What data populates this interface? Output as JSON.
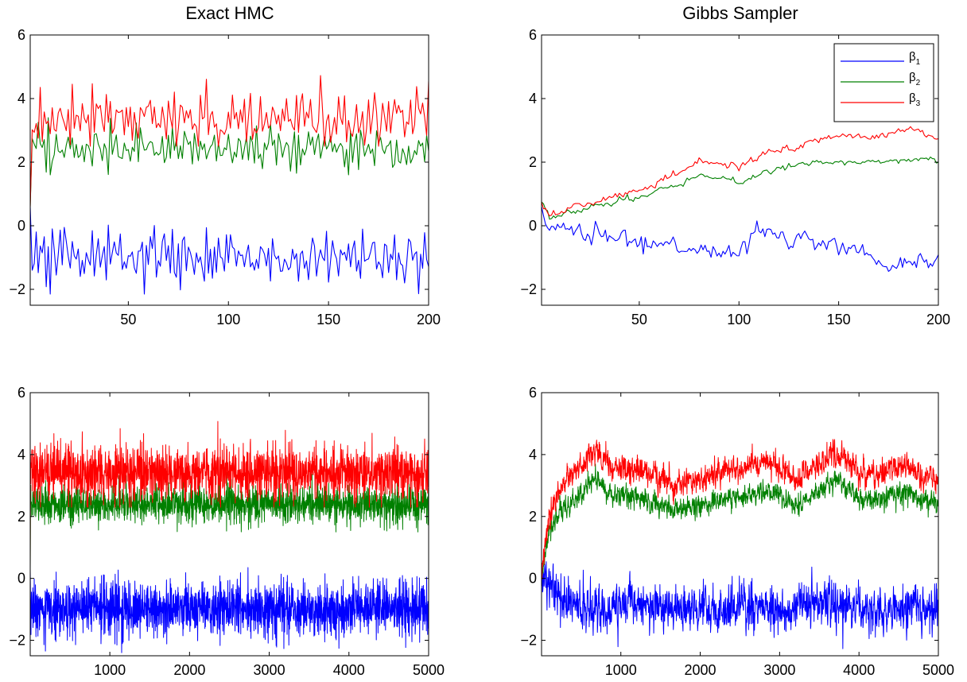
{
  "figure": {
    "columns": [
      "Exact HMC",
      "Gibbs Sampler"
    ]
  },
  "legend": {
    "entries": [
      {
        "symbol": "β",
        "subscript": "1",
        "color": "#0000ff"
      },
      {
        "symbol": "β",
        "subscript": "2",
        "color": "#008000"
      },
      {
        "symbol": "β",
        "subscript": "3",
        "color": "#ff0000"
      }
    ]
  },
  "chart_data": [
    {
      "type": "line",
      "title": "Exact HMC",
      "xlim": [
        1,
        200
      ],
      "ylim": [
        -2.5,
        6
      ],
      "xticks": [
        50,
        100,
        150,
        200
      ],
      "yticks": [
        -2,
        0,
        2,
        4,
        6
      ],
      "grid": false,
      "n": 200,
      "series": [
        {
          "name": "β1",
          "color": "#0000ff",
          "start": 0.6,
          "mean": -1.0,
          "sd": 0.42,
          "rho": -0.3,
          "min": -2.15,
          "max": 0.02,
          "values": []
        },
        {
          "name": "β2",
          "color": "#008000",
          "start": 0.6,
          "mean": 2.45,
          "sd": 0.33,
          "rho": -0.3,
          "min": 1.6,
          "max": 3.4,
          "values": []
        },
        {
          "name": "β3",
          "color": "#ff0000",
          "start": 0.6,
          "mean": 3.35,
          "sd": 0.45,
          "rho": -0.3,
          "min": 2.5,
          "max": 4.75,
          "values": []
        }
      ]
    },
    {
      "type": "line",
      "title": "Gibbs Sampler",
      "xlim": [
        1,
        200
      ],
      "ylim": [
        -2.5,
        6
      ],
      "xticks": [
        50,
        100,
        150,
        200
      ],
      "yticks": [
        -2,
        0,
        2,
        4,
        6
      ],
      "grid": false,
      "legend_position": "top-right",
      "n": 200,
      "series": [
        {
          "name": "β1",
          "color": "#0000ff",
          "path": [
            [
              1,
              0.6
            ],
            [
              3,
              0.05
            ],
            [
              30,
              -0.35
            ],
            [
              50,
              -0.55
            ],
            [
              75,
              -0.7
            ],
            [
              100,
              -0.95
            ],
            [
              110,
              -0.1
            ],
            [
              125,
              -0.4
            ],
            [
              150,
              -0.6
            ],
            [
              165,
              -0.9
            ],
            [
              175,
              -1.5
            ],
            [
              190,
              -1.05
            ],
            [
              200,
              -1.15
            ]
          ],
          "sd": 0.13,
          "values": []
        },
        {
          "name": "β2",
          "color": "#008000",
          "path": [
            [
              1,
              0.75
            ],
            [
              5,
              0.25
            ],
            [
              25,
              0.6
            ],
            [
              50,
              0.9
            ],
            [
              65,
              1.2
            ],
            [
              80,
              1.6
            ],
            [
              100,
              1.4
            ],
            [
              115,
              1.7
            ],
            [
              135,
              2.05
            ],
            [
              150,
              1.95
            ],
            [
              175,
              2.05
            ],
            [
              185,
              2.15
            ],
            [
              200,
              2.05
            ]
          ],
          "sd": 0.05,
          "values": []
        },
        {
          "name": "β3",
          "color": "#ff0000",
          "path": [
            [
              1,
              0.75
            ],
            [
              5,
              0.35
            ],
            [
              25,
              0.7
            ],
            [
              50,
              1.1
            ],
            [
              65,
              1.5
            ],
            [
              80,
              2.05
            ],
            [
              100,
              1.85
            ],
            [
              115,
              2.3
            ],
            [
              135,
              2.6
            ],
            [
              150,
              2.85
            ],
            [
              165,
              2.75
            ],
            [
              185,
              3.05
            ],
            [
              200,
              2.75
            ]
          ],
          "sd": 0.06,
          "values": []
        }
      ]
    },
    {
      "type": "line",
      "xlim": [
        1,
        5000
      ],
      "ylim": [
        -2.5,
        6
      ],
      "xticks": [
        1000,
        2000,
        3000,
        4000,
        5000
      ],
      "yticks": [
        -2,
        0,
        2,
        4,
        6
      ],
      "grid": false,
      "n": 1600,
      "series": [
        {
          "name": "β1",
          "color": "#0000ff",
          "start": 0.3,
          "mean": -1.0,
          "sd": 0.45,
          "rho": -0.25,
          "min": -2.5,
          "max": 0.65,
          "values": []
        },
        {
          "name": "β2",
          "color": "#008000",
          "start": 0.3,
          "mean": 2.4,
          "sd": 0.3,
          "rho": -0.25,
          "min": 1.5,
          "max": 3.6,
          "values": []
        },
        {
          "name": "β3",
          "color": "#ff0000",
          "start": 0.3,
          "mean": 3.4,
          "sd": 0.45,
          "rho": -0.25,
          "min": 2.3,
          "max": 5.2,
          "values": []
        }
      ]
    },
    {
      "type": "line",
      "xlim": [
        1,
        5000
      ],
      "ylim": [
        -2.5,
        6
      ],
      "xticks": [
        1000,
        2000,
        3000,
        4000,
        5000
      ],
      "yticks": [
        -2,
        0,
        2,
        4,
        6
      ],
      "grid": false,
      "n": 1600,
      "series": [
        {
          "name": "β1",
          "color": "#0000ff",
          "path": [
            [
              1,
              0.2
            ],
            [
              100,
              -0.4
            ],
            [
              400,
              -0.9
            ],
            [
              800,
              -1.0
            ],
            [
              1200,
              -0.8
            ],
            [
              1800,
              -1.0
            ],
            [
              2500,
              -0.9
            ],
            [
              3000,
              -1.0
            ],
            [
              3500,
              -0.8
            ],
            [
              4200,
              -1.0
            ],
            [
              5000,
              -0.95
            ]
          ],
          "sd": 0.35,
          "values": []
        },
        {
          "name": "β2",
          "color": "#008000",
          "path": [
            [
              1,
              0.2
            ],
            [
              100,
              1.6
            ],
            [
              250,
              2.2
            ],
            [
              500,
              2.7
            ],
            [
              650,
              3.3
            ],
            [
              900,
              2.7
            ],
            [
              1100,
              2.7
            ],
            [
              1400,
              2.5
            ],
            [
              1700,
              2.2
            ],
            [
              2200,
              2.5
            ],
            [
              2900,
              2.8
            ],
            [
              3200,
              2.3
            ],
            [
              3700,
              3.2
            ],
            [
              4100,
              2.5
            ],
            [
              4600,
              2.8
            ],
            [
              5000,
              2.3
            ]
          ],
          "sd": 0.16,
          "values": []
        },
        {
          "name": "β3",
          "color": "#ff0000",
          "path": [
            [
              1,
              0.2
            ],
            [
              100,
              2.0
            ],
            [
              250,
              3.0
            ],
            [
              500,
              3.6
            ],
            [
              650,
              4.2
            ],
            [
              900,
              3.6
            ],
            [
              1100,
              3.5
            ],
            [
              1400,
              3.3
            ],
            [
              1700,
              3.0
            ],
            [
              2200,
              3.4
            ],
            [
              2900,
              3.8
            ],
            [
              3200,
              3.1
            ],
            [
              3700,
              4.1
            ],
            [
              4100,
              3.3
            ],
            [
              4600,
              3.6
            ],
            [
              5000,
              3.1
            ]
          ],
          "sd": 0.2,
          "values": []
        }
      ]
    }
  ]
}
